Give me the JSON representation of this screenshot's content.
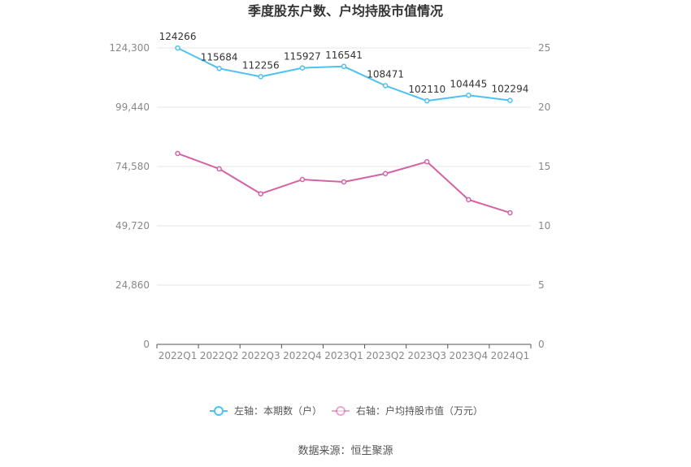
{
  "chart_data": {
    "type": "line",
    "title": "季度股东户数、户均持股市值情况",
    "categories": [
      "2022Q1",
      "2022Q2",
      "2022Q3",
      "2022Q4",
      "2023Q1",
      "2023Q2",
      "2023Q3",
      "2023Q4",
      "2024Q1"
    ],
    "left_axis": {
      "ticks": [
        "0",
        "24,860",
        "49,720",
        "74,580",
        "99,440",
        "124,300"
      ],
      "ylim": [
        0,
        124300
      ]
    },
    "right_axis": {
      "ticks": [
        "0",
        "5",
        "10",
        "15",
        "20",
        "25"
      ],
      "ylim": [
        0,
        25
      ]
    },
    "series": [
      {
        "name": "左轴：本期数（户）",
        "axis": "left",
        "color": "#4fc1ef",
        "values": [
          124266,
          115684,
          112256,
          115927,
          116541,
          108471,
          102110,
          104445,
          102294
        ],
        "labels": [
          "124266",
          "115684",
          "112256",
          "115927",
          "116541",
          "108471",
          "102110",
          "104445",
          "102294"
        ]
      },
      {
        "name": "右轴：户均持股市值（万元）",
        "axis": "right",
        "color": "#d462a6",
        "values": [
          16.1,
          14.8,
          12.7,
          13.9,
          13.7,
          14.4,
          15.4,
          12.2,
          11.1
        ]
      }
    ],
    "grid": true,
    "legend": "bottom-center"
  },
  "footer": {
    "source": "数据来源：恒生聚源"
  }
}
